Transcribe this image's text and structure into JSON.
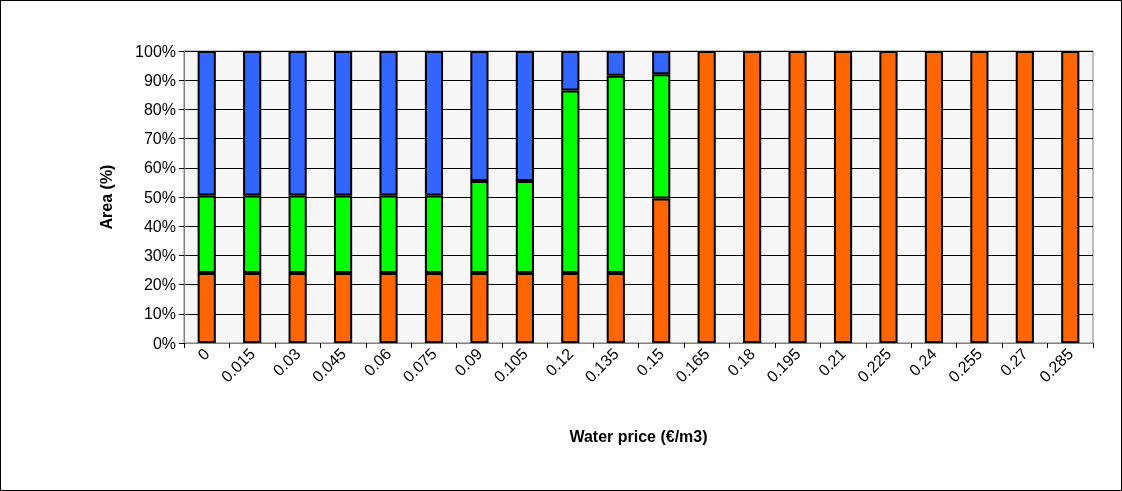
{
  "chart_data": {
    "type": "bar",
    "stacked": true,
    "xlabel": "Water price (€/m3)",
    "ylabel": "Area (%)",
    "categories": [
      "0",
      "0.015",
      "0.03",
      "0.045",
      "0.06",
      "0.075",
      "0.09",
      "0.105",
      "0.12",
      "0.135",
      "0.15",
      "0.165",
      "0.18",
      "0.195",
      "0.21",
      "0.225",
      "0.24",
      "0.255",
      "0.27",
      "0.285"
    ],
    "series": [
      {
        "color": "#ff6600",
        "values": [
          24,
          24,
          24,
          24,
          24,
          24,
          24,
          24,
          24,
          24,
          49.5,
          100,
          100,
          100,
          100,
          100,
          100,
          100,
          100,
          100
        ]
      },
      {
        "color": "#00ff00",
        "values": [
          26.5,
          26.5,
          26.5,
          26.5,
          26.5,
          26.5,
          31.5,
          31.5,
          62.5,
          67.5,
          42.5,
          null,
          null,
          null,
          null,
          null,
          null,
          null,
          null,
          null
        ]
      },
      {
        "color": "#3366ff",
        "values": [
          49.5,
          49.5,
          49.5,
          49.5,
          49.5,
          49.5,
          44.5,
          44.5,
          13.5,
          8.5,
          8,
          null,
          null,
          null,
          null,
          null,
          null,
          null,
          null,
          null
        ]
      }
    ],
    "ylim": [
      0,
      100
    ],
    "yticks": [
      {
        "value": 0,
        "label": "0%"
      },
      {
        "value": 10,
        "label": "10%"
      },
      {
        "value": 20,
        "label": "20%"
      },
      {
        "value": 30,
        "label": "30%"
      },
      {
        "value": 40,
        "label": "40%"
      },
      {
        "value": 50,
        "label": "50%"
      },
      {
        "value": 60,
        "label": "60%"
      },
      {
        "value": 70,
        "label": "70%"
      },
      {
        "value": 80,
        "label": "80%"
      },
      {
        "value": 90,
        "label": "90%"
      },
      {
        "value": 100,
        "label": "100%"
      }
    ],
    "grid": "y"
  }
}
